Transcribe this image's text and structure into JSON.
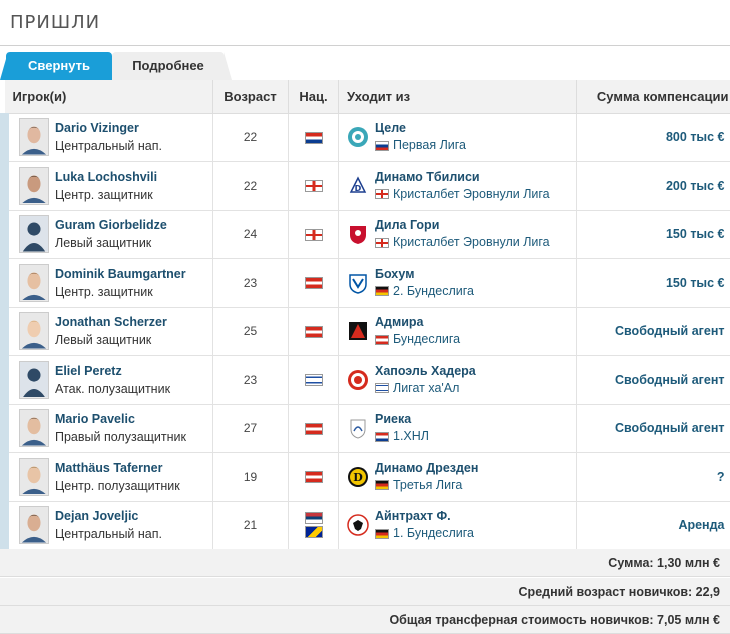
{
  "section_title": "ПРИШЛИ",
  "tabs": {
    "collapse": "Свернуть",
    "details": "Подробнее"
  },
  "columns": {
    "player": "Игрок(и)",
    "age": "Возраст",
    "nat": "Нац.",
    "from": "Уходит из",
    "fee": "Сумма компенсации"
  },
  "players": [
    {
      "name": "Dario Vizinger",
      "position": "Центральный нап.",
      "age": "22",
      "nat_flag": "croatia",
      "club": "Целе",
      "league": "Первая Лига",
      "league_flag": "slovenia",
      "fee": "800 тыс €",
      "crest": "celje"
    },
    {
      "name": "Luka Lochoshvili",
      "position": "Центр. защитник",
      "age": "22",
      "nat_flag": "georgia",
      "club": "Динамо Тбилиси",
      "league": "Кристалбет Эровнули Лига",
      "league_flag": "georgia",
      "fee": "200 тыс €",
      "crest": "dinamo-tbilisi"
    },
    {
      "name": "Guram Giorbelidze",
      "position": "Левый защитник",
      "age": "24",
      "nat_flag": "georgia",
      "club": "Дила Гори",
      "league": "Кристалбет Эровнули Лига",
      "league_flag": "georgia",
      "fee": "150 тыс €",
      "crest": "dila-gori"
    },
    {
      "name": "Dominik Baumgartner",
      "position": "Центр. защитник",
      "age": "23",
      "nat_flag": "austria",
      "club": "Бохум",
      "league": "2. Бундеслига",
      "league_flag": "germany",
      "fee": "150 тыс €",
      "crest": "bochum"
    },
    {
      "name": "Jonathan Scherzer",
      "position": "Левый защитник",
      "age": "25",
      "nat_flag": "austria",
      "club": "Адмира",
      "league": "Бундеслига",
      "league_flag": "austria",
      "fee": "Свободный агент",
      "crest": "admira"
    },
    {
      "name": "Eliel Peretz",
      "position": "Атак. полузащитник",
      "age": "23",
      "nat_flag": "israel",
      "club": "Хапоэль Хадера",
      "league": "Лигат ха'Ал",
      "league_flag": "israel",
      "fee": "Свободный агент",
      "crest": "hapoel-hadera"
    },
    {
      "name": "Mario Pavelic",
      "position": "Правый полузащитник",
      "age": "27",
      "nat_flag": "austria",
      "club": "Риека",
      "league": "1.ХНЛ",
      "league_flag": "croatia",
      "fee": "Свободный агент",
      "crest": "rijeka"
    },
    {
      "name": "Matthäus Taferner",
      "position": "Центр. полузащитник",
      "age": "19",
      "nat_flag": "austria",
      "club": "Динамо Дрезден",
      "league": "Третья Лига",
      "league_flag": "germany",
      "fee": "?",
      "crest": "dynamo-dresden"
    },
    {
      "name": "Dejan Joveljic",
      "position": "Центральный нап.",
      "age": "21",
      "nat_flag": "serbia-bosnia",
      "club": "Айнтрахт Ф.",
      "league": "1. Бундеслига",
      "league_flag": "germany",
      "fee": "Аренда",
      "crest": "eintracht"
    }
  ],
  "totals": {
    "sum": "Сумма: 1,30 млн €",
    "avg_age": "Средний возраст новичков: 22,9",
    "total_value": "Общая трансферная стоимость новичков: 7,05 млн €"
  }
}
